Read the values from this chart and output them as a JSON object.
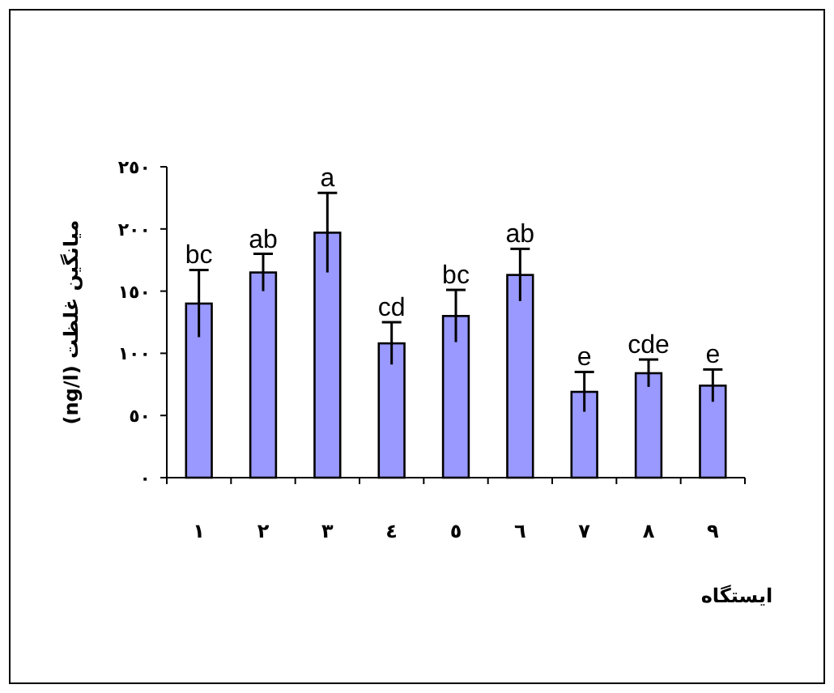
{
  "chart_data": {
    "type": "bar",
    "xlabel": "ایستگاه",
    "ylabel": "میانگین غلظت (ng/l)",
    "categories": [
      "١",
      "٢",
      "٣",
      "٤",
      "٥",
      "٦",
      "٧",
      "٨",
      "٩"
    ],
    "values": [
      140,
      165,
      197,
      108,
      130,
      163,
      69,
      84,
      74
    ],
    "errors": [
      27,
      15,
      32,
      17,
      21,
      21,
      16,
      11,
      13
    ],
    "color": "#9999ff",
    "ylim": [
      0,
      250
    ],
    "yticks": [
      {
        "value": 0,
        "label": "٠"
      },
      {
        "value": 50,
        "label": "٥٠"
      },
      {
        "value": 100,
        "label": "١٠٠"
      },
      {
        "value": 150,
        "label": "١٥٠"
      },
      {
        "value": 200,
        "label": "٢٠٠"
      },
      {
        "value": 250,
        "label": "٢٥٠"
      }
    ],
    "annotations": [
      {
        "text": "bc",
        "x": "١",
        "y": 167
      },
      {
        "text": "ab",
        "x": "٢",
        "y": 180
      },
      {
        "text": "a",
        "x": "٣",
        "y": 229
      },
      {
        "text": "cd",
        "x": "٤",
        "y": 125
      },
      {
        "text": "bc",
        "x": "٥",
        "y": 151
      },
      {
        "text": "ab",
        "x": "٦",
        "y": 184
      },
      {
        "text": "e",
        "x": "٧",
        "y": 85
      },
      {
        "text": "cde",
        "x": "٨",
        "y": 95
      },
      {
        "text": "e",
        "x": "٩",
        "y": 87
      }
    ],
    "grid": false
  }
}
